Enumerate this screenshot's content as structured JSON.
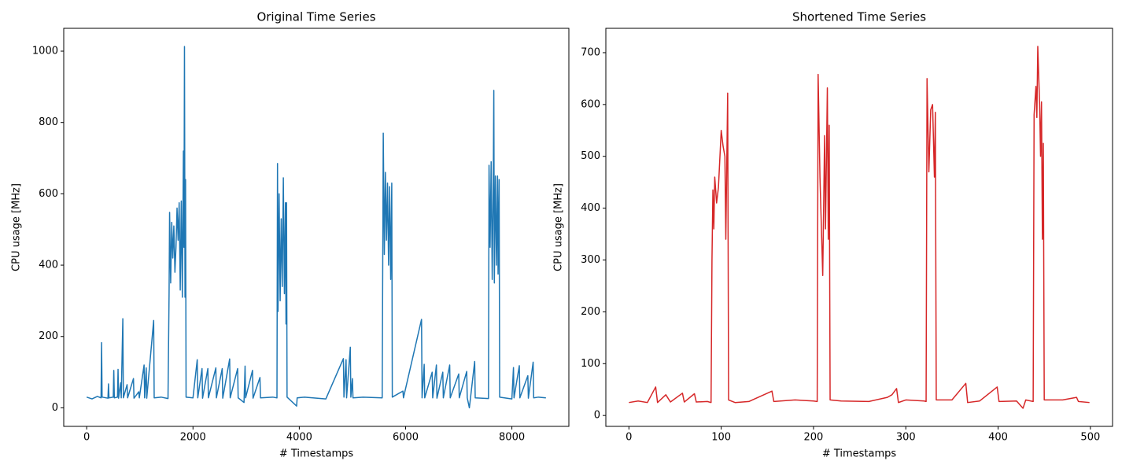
{
  "chart_data": [
    {
      "type": "line",
      "title": "Original Time Series",
      "x_label": "# Timestamps",
      "y_label": "CPU usage [MHz]",
      "color": "#1f77b4",
      "xlim": [
        -432,
        9072
      ],
      "ylim": [
        -52,
        1064
      ],
      "xticks": [
        0,
        2000,
        4000,
        6000,
        8000
      ],
      "yticks": [
        0,
        200,
        400,
        600,
        800,
        1000
      ],
      "x": [
        0,
        100,
        200,
        270,
        280,
        290,
        400,
        410,
        420,
        500,
        510,
        520,
        580,
        590,
        600,
        640,
        650,
        680,
        690,
        760,
        770,
        880,
        890,
        980,
        990,
        1080,
        1090,
        1120,
        1130,
        1260,
        1270,
        1400,
        1530,
        1550,
        1560,
        1580,
        1600,
        1620,
        1640,
        1660,
        1680,
        1700,
        1720,
        1740,
        1760,
        1780,
        1800,
        1820,
        1830,
        1840,
        1850,
        1860,
        1870,
        2000,
        2080,
        2090,
        2170,
        2180,
        2280,
        2290,
        2430,
        2440,
        2550,
        2560,
        2690,
        2700,
        2840,
        2850,
        2960,
        2980,
        2990,
        3120,
        3130,
        3260,
        3270,
        3500,
        3580,
        3590,
        3600,
        3620,
        3640,
        3660,
        3680,
        3700,
        3720,
        3740,
        3750,
        3760,
        3770,
        3950,
        3960,
        4100,
        4500,
        4830,
        4840,
        4880,
        4890,
        4960,
        4970,
        5000,
        5010,
        5200,
        5560,
        5580,
        5600,
        5620,
        5640,
        5660,
        5680,
        5700,
        5720,
        5740,
        5750,
        5950,
        5960,
        6300,
        6310,
        6350,
        6360,
        6500,
        6510,
        6580,
        6590,
        6700,
        6710,
        6830,
        6840,
        7000,
        7010,
        7150,
        7160,
        7200,
        7300,
        7310,
        7560,
        7570,
        7590,
        7610,
        7630,
        7650,
        7660,
        7670,
        7690,
        7710,
        7730,
        7740,
        7760,
        7770,
        8000,
        8030,
        8040,
        8140,
        8150,
        8300,
        8310,
        8400,
        8410,
        8500,
        8640
      ],
      "values": [
        30,
        25,
        32,
        28,
        183,
        30,
        27,
        67,
        28,
        30,
        105,
        28,
        30,
        108,
        27,
        70,
        28,
        250,
        28,
        65,
        28,
        82,
        27,
        45,
        28,
        120,
        28,
        112,
        27,
        245,
        28,
        30,
        26,
        320,
        548,
        350,
        520,
        420,
        510,
        380,
        450,
        560,
        470,
        575,
        330,
        580,
        310,
        720,
        450,
        1013,
        310,
        640,
        30,
        28,
        135,
        28,
        110,
        27,
        110,
        28,
        112,
        28,
        110,
        27,
        137,
        28,
        110,
        28,
        15,
        117,
        28,
        105,
        27,
        85,
        28,
        30,
        28,
        685,
        270,
        600,
        300,
        530,
        340,
        645,
        320,
        575,
        235,
        575,
        30,
        5,
        28,
        30,
        25,
        138,
        30,
        135,
        28,
        170,
        30,
        82,
        28,
        30,
        28,
        770,
        430,
        660,
        470,
        630,
        400,
        620,
        360,
        630,
        30,
        47,
        28,
        248,
        28,
        122,
        28,
        100,
        28,
        120,
        27,
        100,
        28,
        120,
        28,
        95,
        28,
        102,
        28,
        0,
        130,
        28,
        26,
        680,
        450,
        690,
        360,
        630,
        890,
        350,
        650,
        400,
        650,
        375,
        640,
        30,
        25,
        113,
        28,
        118,
        28,
        90,
        27,
        128,
        28,
        30,
        28
      ]
    },
    {
      "type": "line",
      "title": "Shortened Time Series",
      "x_label": "# Timestamps",
      "y_label": "CPU usage [MHz]",
      "color": "#d62728",
      "xlim": [
        -25,
        524
      ],
      "ylim": [
        -21,
        747
      ],
      "xticks": [
        0,
        100,
        200,
        300,
        400,
        500
      ],
      "yticks": [
        0,
        100,
        200,
        300,
        400,
        500,
        600,
        700
      ],
      "x": [
        0,
        10,
        20,
        29,
        31,
        40,
        45,
        58,
        60,
        71,
        73,
        85,
        89,
        90,
        91,
        92,
        93,
        95,
        97,
        100,
        102,
        104,
        105,
        107,
        108,
        115,
        130,
        155,
        157,
        180,
        200,
        204,
        205,
        207,
        210,
        212,
        213,
        215,
        216,
        217,
        218,
        230,
        260,
        280,
        285,
        290,
        292,
        300,
        320,
        322,
        323,
        325,
        327,
        329,
        331,
        332,
        333,
        350,
        365,
        367,
        380,
        399,
        401,
        420,
        427,
        430,
        438,
        439,
        441,
        442,
        443,
        445,
        446,
        447,
        448,
        449,
        450,
        470,
        485,
        487,
        499
      ],
      "values": [
        25,
        28,
        25,
        55,
        25,
        40,
        26,
        43,
        26,
        42,
        26,
        27,
        25,
        300,
        435,
        360,
        460,
        410,
        440,
        550,
        520,
        500,
        340,
        622,
        30,
        25,
        27,
        47,
        27,
        30,
        28,
        27,
        658,
        460,
        270,
        540,
        360,
        632,
        340,
        560,
        30,
        28,
        27,
        35,
        40,
        52,
        25,
        30,
        28,
        27,
        650,
        470,
        590,
        600,
        460,
        585,
        30,
        30,
        62,
        25,
        28,
        55,
        27,
        28,
        14,
        30,
        27,
        580,
        635,
        575,
        712,
        600,
        500,
        605,
        340,
        525,
        30,
        30,
        35,
        27,
        25
      ]
    }
  ]
}
